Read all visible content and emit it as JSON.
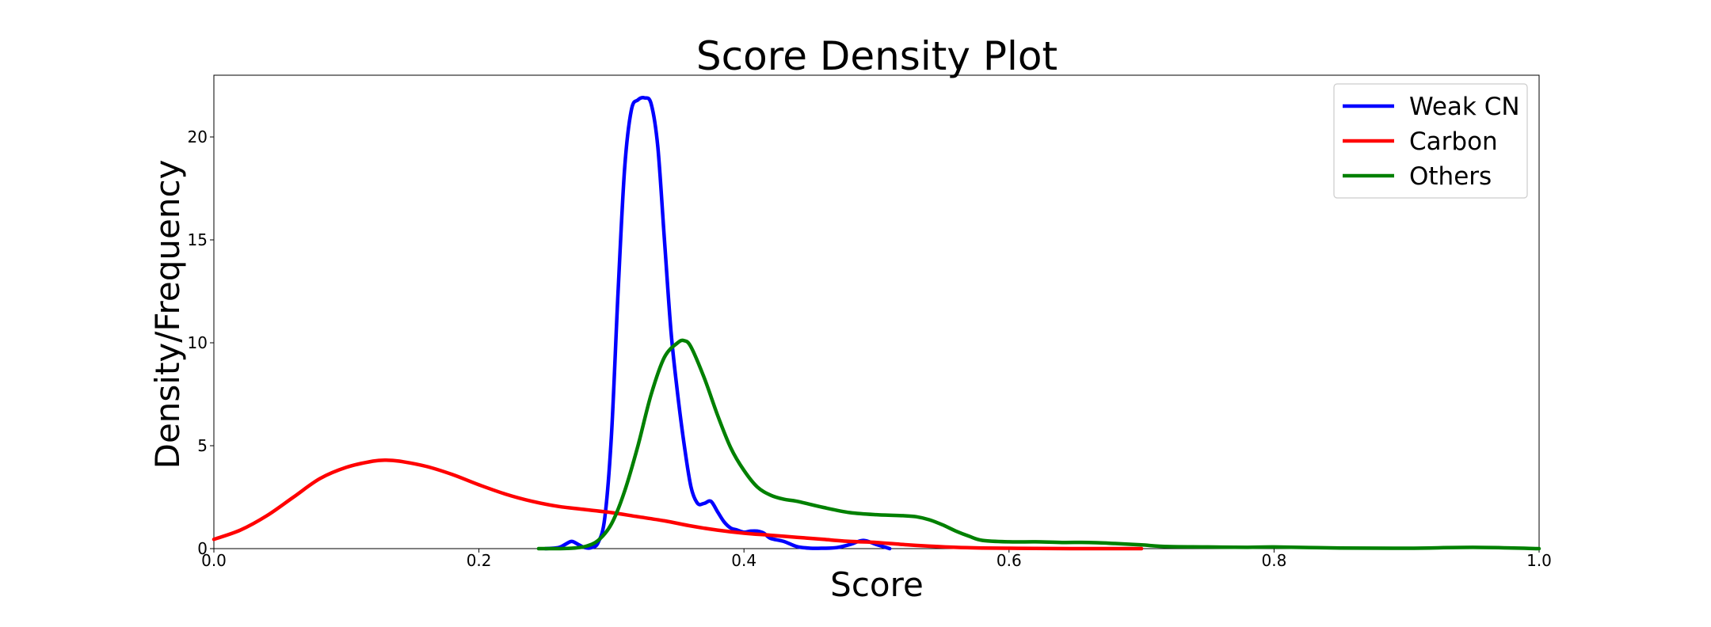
{
  "chart_data": {
    "type": "line",
    "title": "Score Density Plot",
    "xlabel": "Score",
    "ylabel": "Density/Frequency",
    "xlim": [
      0.0,
      1.0
    ],
    "ylim": [
      0,
      23
    ],
    "xticks": [
      "0.0",
      "0.2",
      "0.4",
      "0.6",
      "0.8",
      "1.0"
    ],
    "yticks": [
      "0",
      "5",
      "10",
      "15",
      "20"
    ],
    "grid": false,
    "legend_position": "top-right",
    "series": [
      {
        "name": "Weak CN",
        "color": "#0000ff",
        "x": [
          0.25,
          0.26,
          0.265,
          0.27,
          0.275,
          0.28,
          0.285,
          0.29,
          0.295,
          0.3,
          0.305,
          0.31,
          0.315,
          0.32,
          0.325,
          0.33,
          0.335,
          0.34,
          0.345,
          0.35,
          0.355,
          0.36,
          0.365,
          0.37,
          0.375,
          0.38,
          0.385,
          0.39,
          0.395,
          0.4,
          0.405,
          0.41,
          0.415,
          0.42,
          0.43,
          0.44,
          0.45,
          0.46,
          0.47,
          0.48,
          0.49,
          0.5,
          0.51
        ],
        "y": [
          0,
          0.05,
          0.2,
          0.35,
          0.2,
          0.05,
          0.05,
          0.3,
          1.5,
          5.5,
          12.5,
          18.5,
          21.3,
          21.8,
          21.9,
          21.6,
          19.5,
          15.0,
          10.5,
          7.5,
          5.0,
          3.0,
          2.2,
          2.2,
          2.3,
          1.8,
          1.3,
          1.0,
          0.9,
          0.8,
          0.85,
          0.85,
          0.75,
          0.5,
          0.35,
          0.1,
          0.02,
          0.02,
          0.05,
          0.2,
          0.4,
          0.2,
          0.0
        ]
      },
      {
        "name": "Carbon",
        "color": "#ff0000",
        "x": [
          0.0,
          0.02,
          0.04,
          0.06,
          0.08,
          0.1,
          0.12,
          0.13,
          0.14,
          0.16,
          0.18,
          0.2,
          0.22,
          0.24,
          0.26,
          0.28,
          0.3,
          0.32,
          0.34,
          0.36,
          0.38,
          0.4,
          0.42,
          0.44,
          0.46,
          0.48,
          0.5,
          0.52,
          0.54,
          0.56,
          0.58,
          0.6,
          0.62,
          0.66,
          0.7
        ],
        "y": [
          0.45,
          0.9,
          1.6,
          2.5,
          3.4,
          3.95,
          4.25,
          4.3,
          4.25,
          4.0,
          3.6,
          3.1,
          2.65,
          2.3,
          2.05,
          1.9,
          1.75,
          1.55,
          1.35,
          1.1,
          0.9,
          0.75,
          0.65,
          0.55,
          0.45,
          0.35,
          0.3,
          0.2,
          0.12,
          0.06,
          0.03,
          0.02,
          0.01,
          0.0,
          0.0
        ]
      },
      {
        "name": "Others",
        "color": "#008000",
        "x": [
          0.245,
          0.26,
          0.27,
          0.28,
          0.29,
          0.3,
          0.31,
          0.32,
          0.33,
          0.34,
          0.35,
          0.355,
          0.36,
          0.37,
          0.38,
          0.39,
          0.4,
          0.41,
          0.42,
          0.43,
          0.44,
          0.46,
          0.48,
          0.5,
          0.52,
          0.53,
          0.54,
          0.55,
          0.56,
          0.57,
          0.58,
          0.6,
          0.62,
          0.64,
          0.66,
          0.68,
          0.7,
          0.72,
          0.75,
          0.78,
          0.8,
          0.85,
          0.9,
          0.95,
          1.0
        ],
        "y": [
          0.0,
          0.0,
          0.02,
          0.1,
          0.4,
          1.2,
          2.8,
          5.0,
          7.5,
          9.3,
          10.0,
          10.1,
          9.8,
          8.3,
          6.5,
          4.9,
          3.8,
          3.0,
          2.6,
          2.4,
          2.3,
          2.0,
          1.75,
          1.65,
          1.6,
          1.55,
          1.4,
          1.15,
          0.85,
          0.6,
          0.4,
          0.33,
          0.33,
          0.3,
          0.3,
          0.25,
          0.18,
          0.1,
          0.08,
          0.06,
          0.08,
          0.03,
          0.02,
          0.06,
          0.0
        ]
      }
    ]
  }
}
